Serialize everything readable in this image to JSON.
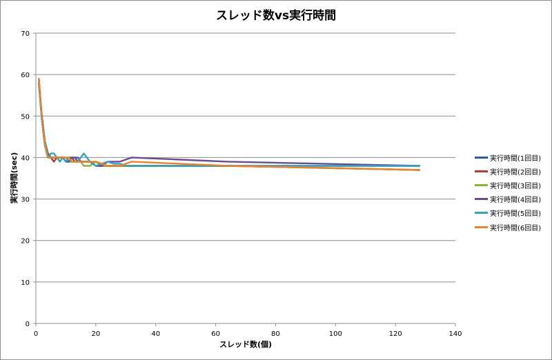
{
  "chart_data": {
    "type": "line",
    "title": "スレッド数vs実行時間",
    "xlabel": "スレッド数(個)",
    "ylabel": "実行時間(sec)",
    "xlim": [
      0,
      140
    ],
    "ylim": [
      0,
      70
    ],
    "xticks": [
      0,
      20,
      40,
      60,
      80,
      100,
      120,
      140
    ],
    "yticks": [
      0,
      10,
      20,
      30,
      40,
      50,
      60,
      70
    ],
    "grid": "horizontal",
    "legend_position": "right",
    "series": [
      {
        "name": "実行時間(1回目)",
        "color": "#2a5e9a",
        "x": [
          1,
          2,
          3,
          4,
          5,
          6,
          7,
          8,
          9,
          10,
          11,
          12,
          13,
          14,
          15,
          16,
          18,
          20,
          22,
          24,
          26,
          28,
          30,
          32,
          64,
          128
        ],
        "y": [
          59,
          50,
          44,
          41,
          40,
          40,
          40,
          40,
          40,
          39,
          39,
          40,
          40,
          39,
          39,
          39,
          39,
          38,
          38,
          38,
          38,
          38,
          38,
          38,
          38,
          38
        ]
      },
      {
        "name": "実行時間(2回目)",
        "color": "#b03a32",
        "x": [
          1,
          2,
          3,
          4,
          5,
          6,
          7,
          8,
          9,
          10,
          11,
          12,
          13,
          14,
          15,
          16,
          18,
          20,
          22,
          24,
          26,
          28,
          30,
          32,
          64,
          128
        ],
        "y": [
          58,
          49,
          43,
          40,
          40,
          39,
          40,
          40,
          40,
          39,
          40,
          40,
          39,
          39,
          39,
          39,
          39,
          38,
          38,
          38,
          38,
          38,
          38,
          38,
          38,
          37
        ]
      },
      {
        "name": "実行時間(3回目)",
        "color": "#8ab33b",
        "x": [
          1,
          2,
          3,
          4,
          5,
          6,
          7,
          8,
          9,
          10,
          11,
          12,
          13,
          14,
          15,
          16,
          18,
          20,
          22,
          24,
          26,
          28,
          30,
          32,
          64,
          128
        ],
        "y": [
          58,
          49,
          43,
          40,
          40,
          40,
          40,
          40,
          40,
          40,
          39,
          39,
          39,
          39,
          39,
          38,
          38,
          39,
          38,
          38,
          38,
          38,
          38,
          38,
          38,
          37
        ]
      },
      {
        "name": "実行時間(4回目)",
        "color": "#6b4b8e",
        "x": [
          1,
          2,
          3,
          4,
          5,
          6,
          7,
          8,
          9,
          10,
          11,
          12,
          13,
          14,
          15,
          16,
          18,
          20,
          22,
          24,
          26,
          28,
          30,
          32,
          64,
          128
        ],
        "y": [
          58,
          49,
          43,
          40,
          40,
          40,
          40,
          40,
          40,
          39,
          39,
          40,
          40,
          40,
          39,
          39,
          39,
          38,
          38,
          39,
          39,
          39,
          39.5,
          40,
          39,
          38
        ]
      },
      {
        "name": "実行時間(5回目)",
        "color": "#37a0bd",
        "x": [
          1,
          2,
          3,
          4,
          5,
          6,
          7,
          8,
          9,
          10,
          11,
          12,
          13,
          14,
          15,
          16,
          18,
          20,
          22,
          24,
          26,
          28,
          30,
          32,
          64,
          128
        ],
        "y": [
          59,
          49,
          44,
          40,
          41,
          41,
          40,
          39,
          40,
          39,
          40,
          39,
          39,
          39,
          40,
          41,
          39,
          38,
          38.5,
          39,
          38.5,
          38.5,
          38,
          38,
          38,
          38
        ]
      },
      {
        "name": "実行時間(6回目)",
        "color": "#e68231",
        "x": [
          1,
          2,
          3,
          4,
          5,
          6,
          7,
          8,
          9,
          10,
          11,
          12,
          13,
          14,
          15,
          16,
          18,
          20,
          22,
          24,
          26,
          28,
          30,
          32,
          64,
          128
        ],
        "y": [
          59,
          49,
          43,
          40,
          40,
          40,
          40,
          40,
          40,
          40,
          40,
          39,
          39,
          39,
          39,
          39,
          39,
          39,
          38.5,
          38,
          38,
          38,
          38.5,
          39,
          38,
          37
        ]
      }
    ]
  }
}
